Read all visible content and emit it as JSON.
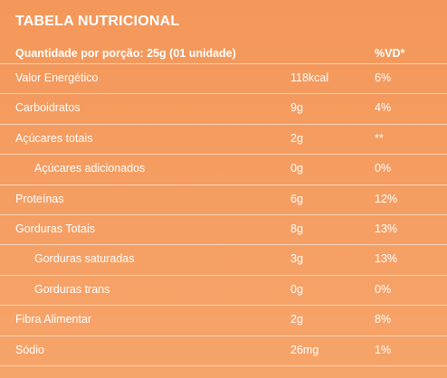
{
  "table": {
    "title": "TABELA NUTRICIONAL",
    "header": {
      "portion": "Quantidade por porção: 25g (01 unidade)",
      "vd": "%VD*"
    },
    "rows": [
      {
        "label": "Valor Energético",
        "qty": "118kcal",
        "vd": "6%",
        "indent": false
      },
      {
        "label": "Carboidratos",
        "qty": "9g",
        "vd": "4%",
        "indent": false
      },
      {
        "label": "Açúcares totais",
        "qty": "2g",
        "vd": "**",
        "indent": false
      },
      {
        "label": "Açúcares adicionados",
        "qty": "0g",
        "vd": "0%",
        "indent": true
      },
      {
        "label": "Proteínas",
        "qty": "6g",
        "vd": "12%",
        "indent": false
      },
      {
        "label": "Gorduras Totais",
        "qty": "8g",
        "vd": "13%",
        "indent": false
      },
      {
        "label": "Gorduras saturadas",
        "qty": "3g",
        "vd": "13%",
        "indent": true
      },
      {
        "label": "Gorduras trans",
        "qty": "0g",
        "vd": "0%",
        "indent": true
      },
      {
        "label": "Fibra Alimentar",
        "qty": "2g",
        "vd": "8%",
        "indent": false
      },
      {
        "label": "Sódio",
        "qty": "26mg",
        "vd": "1%",
        "indent": false
      }
    ]
  },
  "colors": {
    "background": "#f5a062",
    "text": "#ffffff"
  }
}
